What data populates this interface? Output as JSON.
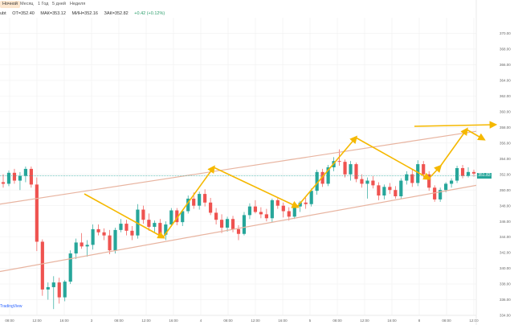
{
  "toolbar": {
    "tabs": [
      {
        "label": "Ночной",
        "active": true
      },
      {
        "label": "Месяц",
        "active": false
      },
      {
        "label": "1 Год",
        "active": false
      },
      {
        "label": "5 дней",
        "active": false
      },
      {
        "label": "Неделя",
        "active": false
      }
    ]
  },
  "legend": {
    "symbol": "ubt",
    "open_label": "ОТ=",
    "open": "352.40",
    "high_label": "МАК=",
    "high": "353.12",
    "low_label": "МИН=",
    "low": "352.16",
    "close_label": "ЗАК=",
    "close": "352.82",
    "change": "+0.42 (+0.12%)"
  },
  "brand": "TradingView",
  "colors": {
    "up": "#26a69a",
    "down": "#ef5350",
    "channel": "#e8b4a0",
    "arrow": "#f5b800",
    "price_line": "#26a69a",
    "tab_active": "#fde7cf"
  },
  "current_price_label": "351.83",
  "chart_data": {
    "type": "candlestick",
    "title": "",
    "x_tick_labels": [
      "08:00",
      "12:00",
      "16:00",
      "3",
      "08:00",
      "12:00",
      "16:00",
      "4",
      "08:00",
      "12:00",
      "16:00",
      "5",
      "08:00",
      "12:00",
      "16:00",
      "8",
      "08:00",
      "12:00"
    ],
    "y_tick_labels": [
      "370.00",
      "368.00",
      "366.00",
      "364.00",
      "362.00",
      "360.00",
      "358.00",
      "356.00",
      "354.00",
      "352.00",
      "350.00",
      "348.00",
      "346.00",
      "344.00",
      "342.00",
      "340.00",
      "338.00",
      "336.00",
      "334.00"
    ],
    "ylim": [
      334,
      372
    ],
    "candles": [
      {
        "o": 351.0,
        "h": 352.0,
        "l": 350.3,
        "c": 350.8
      },
      {
        "o": 350.8,
        "h": 352.5,
        "l": 350.5,
        "c": 352.2
      },
      {
        "o": 352.2,
        "h": 352.7,
        "l": 350.8,
        "c": 351.2
      },
      {
        "o": 351.2,
        "h": 352.3,
        "l": 350.0,
        "c": 351.8
      },
      {
        "o": 351.8,
        "h": 353.0,
        "l": 351.0,
        "c": 352.7
      },
      {
        "o": 352.7,
        "h": 353.0,
        "l": 350.3,
        "c": 350.7
      },
      {
        "o": 350.7,
        "h": 351.6,
        "l": 342.2,
        "c": 343.4
      },
      {
        "o": 343.4,
        "h": 343.7,
        "l": 336.5,
        "c": 337.3
      },
      {
        "o": 337.3,
        "h": 338.2,
        "l": 336.0,
        "c": 337.6
      },
      {
        "o": 337.6,
        "h": 339.0,
        "l": 334.8,
        "c": 338.2
      },
      {
        "o": 338.2,
        "h": 338.8,
        "l": 335.5,
        "c": 336.3
      },
      {
        "o": 336.3,
        "h": 338.5,
        "l": 335.8,
        "c": 338.3
      },
      {
        "o": 338.3,
        "h": 342.3,
        "l": 338.0,
        "c": 341.9
      },
      {
        "o": 341.9,
        "h": 343.8,
        "l": 341.2,
        "c": 343.3
      },
      {
        "o": 343.3,
        "h": 344.5,
        "l": 342.5,
        "c": 342.8
      },
      {
        "o": 342.8,
        "h": 343.6,
        "l": 341.5,
        "c": 343.0
      },
      {
        "o": 343.0,
        "h": 345.6,
        "l": 342.4,
        "c": 345.0
      },
      {
        "o": 345.0,
        "h": 345.6,
        "l": 344.2,
        "c": 344.6
      },
      {
        "o": 344.6,
        "h": 345.1,
        "l": 343.6,
        "c": 344.2
      },
      {
        "o": 344.2,
        "h": 344.9,
        "l": 341.8,
        "c": 342.3
      },
      {
        "o": 342.3,
        "h": 345.2,
        "l": 341.9,
        "c": 344.9
      },
      {
        "o": 344.9,
        "h": 346.3,
        "l": 344.6,
        "c": 345.7
      },
      {
        "o": 345.7,
        "h": 346.2,
        "l": 344.2,
        "c": 344.8
      },
      {
        "o": 344.8,
        "h": 345.4,
        "l": 343.6,
        "c": 344.2
      },
      {
        "o": 344.2,
        "h": 348.2,
        "l": 343.8,
        "c": 347.5
      },
      {
        "o": 347.5,
        "h": 348.0,
        "l": 345.7,
        "c": 346.2
      },
      {
        "o": 346.2,
        "h": 347.0,
        "l": 344.8,
        "c": 345.3
      },
      {
        "o": 345.3,
        "h": 346.1,
        "l": 344.6,
        "c": 345.8
      },
      {
        "o": 345.8,
        "h": 346.3,
        "l": 343.9,
        "c": 344.3
      },
      {
        "o": 344.3,
        "h": 346.0,
        "l": 343.6,
        "c": 345.6
      },
      {
        "o": 345.6,
        "h": 347.7,
        "l": 345.3,
        "c": 347.4
      },
      {
        "o": 347.4,
        "h": 347.7,
        "l": 345.5,
        "c": 345.9
      },
      {
        "o": 345.9,
        "h": 347.5,
        "l": 345.4,
        "c": 347.3
      },
      {
        "o": 347.3,
        "h": 349.3,
        "l": 347.0,
        "c": 348.9
      },
      {
        "o": 348.9,
        "h": 349.7,
        "l": 347.6,
        "c": 348.0
      },
      {
        "o": 348.0,
        "h": 349.8,
        "l": 347.5,
        "c": 349.5
      },
      {
        "o": 349.5,
        "h": 350.1,
        "l": 347.9,
        "c": 348.4
      },
      {
        "o": 348.4,
        "h": 349.0,
        "l": 346.8,
        "c": 347.1
      },
      {
        "o": 347.1,
        "h": 347.7,
        "l": 345.6,
        "c": 346.2
      },
      {
        "o": 346.2,
        "h": 346.9,
        "l": 344.5,
        "c": 345.2
      },
      {
        "o": 345.2,
        "h": 346.6,
        "l": 344.7,
        "c": 346.3
      },
      {
        "o": 346.3,
        "h": 346.7,
        "l": 344.6,
        "c": 345.0
      },
      {
        "o": 345.0,
        "h": 345.5,
        "l": 343.6,
        "c": 344.4
      },
      {
        "o": 344.4,
        "h": 347.2,
        "l": 344.2,
        "c": 346.8
      },
      {
        "o": 346.8,
        "h": 348.3,
        "l": 346.3,
        "c": 347.9
      },
      {
        "o": 347.9,
        "h": 348.7,
        "l": 347.0,
        "c": 347.2
      },
      {
        "o": 347.2,
        "h": 347.8,
        "l": 346.4,
        "c": 346.9
      },
      {
        "o": 346.9,
        "h": 347.6,
        "l": 346.0,
        "c": 346.4
      },
      {
        "o": 346.4,
        "h": 348.9,
        "l": 345.9,
        "c": 348.7
      },
      {
        "o": 348.7,
        "h": 349.1,
        "l": 347.6,
        "c": 348.0
      },
      {
        "o": 348.0,
        "h": 348.4,
        "l": 346.5,
        "c": 347.3
      },
      {
        "o": 347.3,
        "h": 347.8,
        "l": 346.1,
        "c": 346.6
      },
      {
        "o": 346.6,
        "h": 348.2,
        "l": 346.3,
        "c": 347.9
      },
      {
        "o": 347.9,
        "h": 348.6,
        "l": 347.2,
        "c": 348.4
      },
      {
        "o": 348.4,
        "h": 349.0,
        "l": 347.6,
        "c": 348.2
      },
      {
        "o": 348.2,
        "h": 350.2,
        "l": 347.9,
        "c": 349.9
      },
      {
        "o": 349.9,
        "h": 352.6,
        "l": 349.4,
        "c": 352.3
      },
      {
        "o": 352.3,
        "h": 352.7,
        "l": 350.4,
        "c": 350.8
      },
      {
        "o": 350.8,
        "h": 353.2,
        "l": 350.5,
        "c": 352.9
      },
      {
        "o": 352.9,
        "h": 354.2,
        "l": 352.4,
        "c": 353.7
      },
      {
        "o": 353.7,
        "h": 355.2,
        "l": 353.1,
        "c": 353.6
      },
      {
        "o": 353.6,
        "h": 353.9,
        "l": 351.6,
        "c": 352.0
      },
      {
        "o": 352.0,
        "h": 353.7,
        "l": 351.2,
        "c": 353.3
      },
      {
        "o": 353.3,
        "h": 353.5,
        "l": 351.0,
        "c": 351.4
      },
      {
        "o": 351.4,
        "h": 352.0,
        "l": 350.3,
        "c": 350.8
      },
      {
        "o": 350.8,
        "h": 351.6,
        "l": 348.9,
        "c": 351.2
      },
      {
        "o": 351.2,
        "h": 351.8,
        "l": 350.2,
        "c": 350.6
      },
      {
        "o": 350.6,
        "h": 351.0,
        "l": 348.7,
        "c": 349.3
      },
      {
        "o": 349.3,
        "h": 350.7,
        "l": 348.8,
        "c": 350.4
      },
      {
        "o": 350.4,
        "h": 350.9,
        "l": 349.5,
        "c": 350.0
      },
      {
        "o": 350.0,
        "h": 350.5,
        "l": 348.9,
        "c": 349.2
      },
      {
        "o": 349.2,
        "h": 351.5,
        "l": 348.9,
        "c": 351.2
      },
      {
        "o": 351.2,
        "h": 352.4,
        "l": 350.7,
        "c": 352.0
      },
      {
        "o": 352.0,
        "h": 352.6,
        "l": 350.4,
        "c": 350.9
      },
      {
        "o": 350.9,
        "h": 353.8,
        "l": 350.5,
        "c": 353.3
      },
      {
        "o": 353.3,
        "h": 353.7,
        "l": 351.6,
        "c": 352.0
      },
      {
        "o": 352.0,
        "h": 352.4,
        "l": 349.9,
        "c": 350.3
      },
      {
        "o": 350.3,
        "h": 350.6,
        "l": 348.5,
        "c": 348.8
      },
      {
        "o": 348.8,
        "h": 350.3,
        "l": 348.5,
        "c": 350.0
      },
      {
        "o": 350.0,
        "h": 351.0,
        "l": 349.7,
        "c": 350.8
      },
      {
        "o": 350.8,
        "h": 351.5,
        "l": 350.3,
        "c": 351.2
      },
      {
        "o": 351.2,
        "h": 353.1,
        "l": 350.9,
        "c": 352.8
      },
      {
        "o": 352.8,
        "h": 353.2,
        "l": 351.5,
        "c": 351.8
      },
      {
        "o": 351.8,
        "h": 352.9,
        "l": 351.6,
        "c": 352.3
      },
      {
        "o": 352.3,
        "h": 352.6,
        "l": 351.7,
        "c": 352.1
      }
    ],
    "current_price": 351.83,
    "channel_lines": "two parallel ascending trend lines",
    "annotations": "yellow zigzag arrows following the channel and two arrows pointing right at top"
  }
}
